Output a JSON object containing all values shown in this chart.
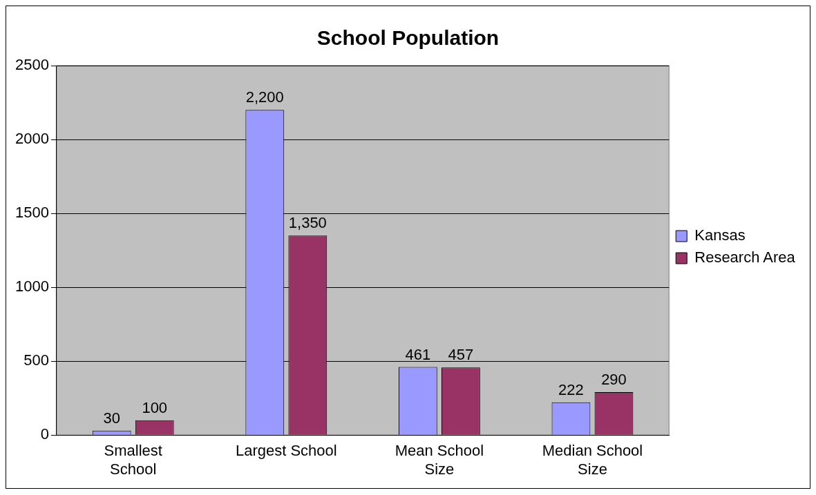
{
  "chart_data": {
    "type": "bar",
    "title": "School Population",
    "categories": [
      "Smallest School",
      "Largest School",
      "Mean School Size",
      "Median School Size"
    ],
    "series": [
      {
        "name": "Kansas",
        "color": "#9999ff",
        "values": [
          30,
          2200,
          461,
          222
        ],
        "value_labels": [
          "30",
          "2,200",
          "461",
          "222"
        ]
      },
      {
        "name": "Research Area",
        "color": "#993366",
        "values": [
          100,
          1350,
          457,
          290
        ],
        "value_labels": [
          "100",
          "1,350",
          "457",
          "290"
        ]
      }
    ],
    "ylim": [
      0,
      2500
    ],
    "yticks": [
      0,
      500,
      1000,
      1500,
      2000,
      2500
    ],
    "grid": "y",
    "legend": "right"
  }
}
